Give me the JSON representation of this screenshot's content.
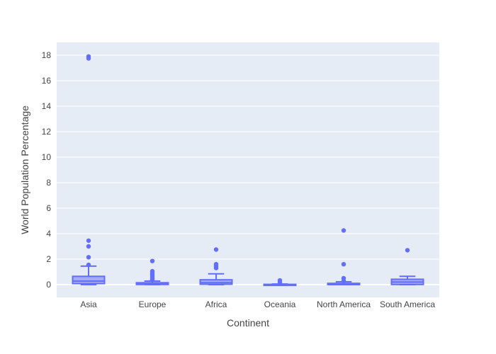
{
  "chart_data": {
    "type": "box",
    "xlabel": "Continent",
    "ylabel": "World Population Percentage",
    "ylim": [
      -1.0,
      19.0
    ],
    "yticks": [
      0,
      2,
      4,
      6,
      8,
      10,
      12,
      14,
      16,
      18
    ],
    "yticklabels": [
      "0",
      "2",
      "4",
      "6",
      "8",
      "10",
      "12",
      "14",
      "16",
      "18"
    ],
    "grid": true,
    "legend": "none",
    "colors": {
      "plot_background": "#e5ecf6",
      "grid": "#ffffff",
      "box_line": "#636efa",
      "box_fill": "#a6abf5"
    },
    "categories": [
      "Asia",
      "Europe",
      "Africa",
      "Oceania",
      "North America",
      "South America"
    ],
    "boxes": [
      {
        "category": "Asia",
        "min": 0.0,
        "q1": 0.08,
        "median": 0.28,
        "q3": 0.65,
        "max": 1.45,
        "outliers": [
          1.55,
          2.15,
          3.0,
          3.45,
          17.75,
          17.9
        ]
      },
      {
        "category": "Europe",
        "min": 0.0,
        "q1": 0.01,
        "median": 0.06,
        "q3": 0.15,
        "max": 0.28,
        "outliers": [
          0.38,
          0.45,
          0.55,
          0.65,
          0.75,
          0.85,
          0.95,
          1.05,
          1.85
        ]
      },
      {
        "category": "Africa",
        "min": 0.0,
        "q1": 0.03,
        "median": 0.15,
        "q3": 0.38,
        "max": 0.85,
        "outliers": [
          1.3,
          1.4,
          1.5,
          1.6,
          2.75
        ]
      },
      {
        "category": "Oceania",
        "min": 0.0,
        "q1": 0.0,
        "median": 0.01,
        "q3": 0.02,
        "max": 0.05,
        "outliers": [
          0.1,
          0.2,
          0.33
        ]
      },
      {
        "category": "North America",
        "min": 0.0,
        "q1": 0.0,
        "median": 0.02,
        "q3": 0.1,
        "max": 0.22,
        "outliers": [
          0.3,
          0.5,
          1.6,
          4.25
        ]
      },
      {
        "category": "South America",
        "min": 0.0,
        "q1": 0.01,
        "median": 0.2,
        "q3": 0.42,
        "max": 0.65,
        "outliers": [
          2.7
        ]
      }
    ]
  }
}
